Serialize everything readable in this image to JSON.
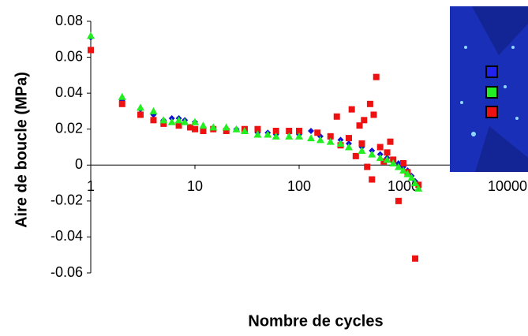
{
  "chart_data": {
    "type": "scatter",
    "x_label": "Nombre de cycles",
    "y_label": "Aire de boucle (MPa)",
    "xscale": "log",
    "xlim": [
      1,
      10000
    ],
    "xticks": [
      1,
      10,
      100,
      1000,
      10000
    ],
    "ylim": [
      -0.06,
      0.08
    ],
    "yticks": [
      0.08,
      0.06,
      0.04,
      0.02,
      0,
      -0.02,
      -0.04,
      -0.06
    ],
    "series": [
      {
        "color": "#1010d0",
        "marker": "diamond",
        "x": [
          1,
          2,
          3,
          4,
          5,
          6,
          7,
          8,
          10,
          12,
          15,
          20,
          25,
          30,
          40,
          50,
          60,
          80,
          100,
          130,
          160,
          200,
          250,
          300,
          400,
          500,
          600,
          700,
          800,
          900,
          1000,
          1100,
          1200,
          1300,
          1400
        ],
        "values": [
          0.071,
          0.036,
          0.031,
          0.028,
          0.025,
          0.026,
          0.026,
          0.025,
          0.024,
          0.021,
          0.02,
          0.02,
          0.02,
          0.019,
          0.018,
          0.018,
          0.017,
          0.018,
          0.017,
          0.019,
          0.016,
          0.015,
          0.014,
          0.012,
          0.01,
          0.008,
          0.006,
          0.004,
          0.002,
          0.001,
          -0.001,
          -0.003,
          -0.006,
          -0.009,
          -0.012
        ]
      },
      {
        "color": "#ee1111",
        "marker": "square",
        "x": [
          1,
          2,
          3,
          4,
          5,
          7,
          9,
          10,
          12,
          15,
          20,
          30,
          40,
          60,
          80,
          100,
          150,
          200,
          230,
          250,
          300,
          320,
          350,
          380,
          400,
          420,
          450,
          480,
          500,
          520,
          550,
          600,
          650,
          700,
          750,
          800,
          900,
          1000,
          1100,
          1300,
          1400
        ],
        "values": [
          0.064,
          0.034,
          0.028,
          0.025,
          0.023,
          0.022,
          0.021,
          0.02,
          0.019,
          0.02,
          0.019,
          0.02,
          0.02,
          0.019,
          0.019,
          0.019,
          0.018,
          0.016,
          0.027,
          0.011,
          0.015,
          0.031,
          0.005,
          0.022,
          0.012,
          0.025,
          -0.001,
          0.034,
          -0.008,
          0.028,
          0.049,
          0.01,
          0.002,
          0.007,
          0.013,
          0.003,
          -0.02,
          0.001,
          -0.004,
          -0.052,
          -0.011
        ]
      },
      {
        "color": "#22ee22",
        "marker": "triangle",
        "x": [
          1,
          2,
          3,
          4,
          5,
          6,
          7,
          8,
          10,
          12,
          15,
          20,
          25,
          30,
          40,
          50,
          60,
          80,
          100,
          130,
          160,
          200,
          250,
          300,
          400,
          500,
          600,
          700,
          800,
          900,
          1000,
          1100,
          1200,
          1300,
          1400
        ],
        "values": [
          0.072,
          0.038,
          0.032,
          0.03,
          0.025,
          0.024,
          0.025,
          0.024,
          0.024,
          0.022,
          0.021,
          0.021,
          0.02,
          0.019,
          0.017,
          0.017,
          0.016,
          0.016,
          0.016,
          0.015,
          0.014,
          0.013,
          0.012,
          0.01,
          0.008,
          0.006,
          0.004,
          0.003,
          0.001,
          -0.001,
          -0.003,
          -0.005,
          -0.007,
          -0.01,
          -0.013
        ]
      }
    ]
  }
}
